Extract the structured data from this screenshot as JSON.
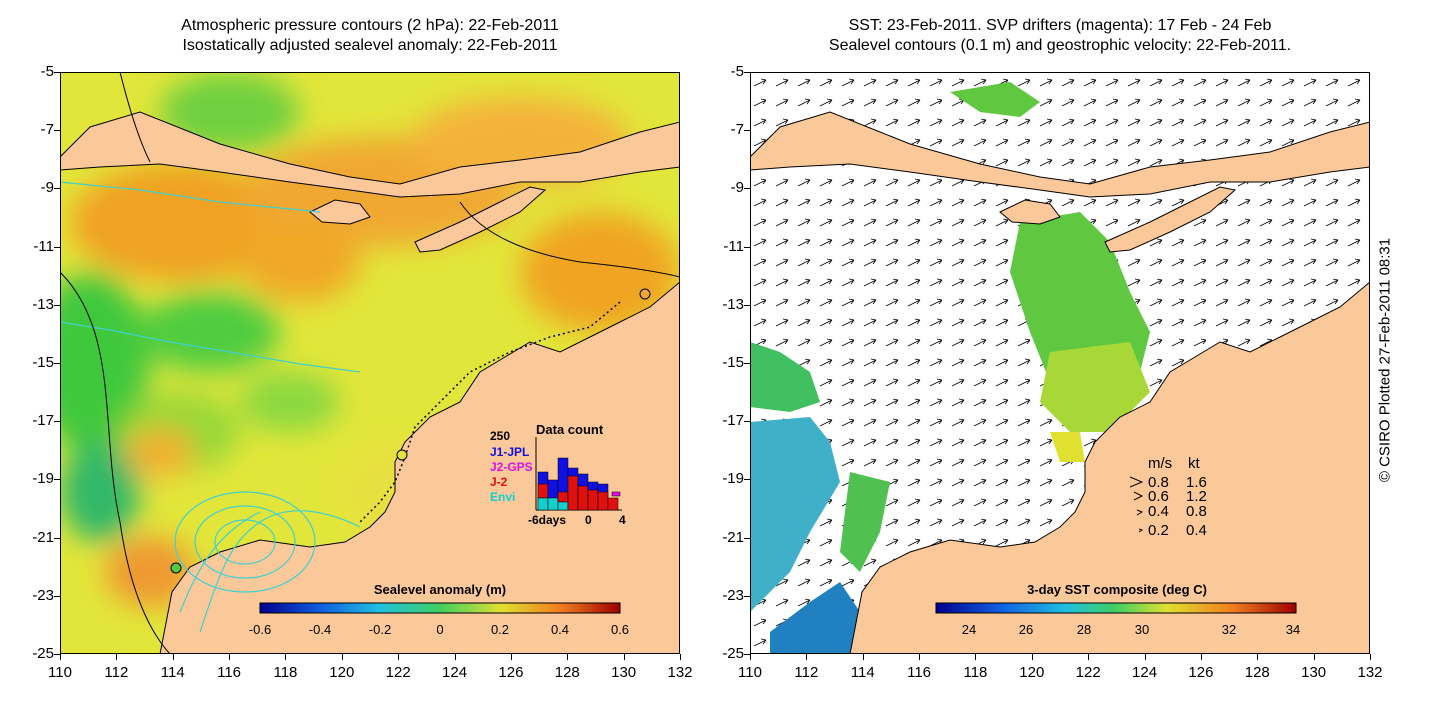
{
  "left_panel": {
    "title_line1": "Atmospheric pressure contours (2 hPa): 22-Feb-2011",
    "title_line2": "Isostatically adjusted sealevel anomaly: 22-Feb-2011",
    "colorbar": {
      "label": "Sealevel anomaly (m)",
      "ticks": [
        "-0.6",
        "-0.4",
        "-0.2",
        "0",
        "0.2",
        "0.4",
        "0.6"
      ]
    },
    "data_count": {
      "title": "Data count",
      "ymax_label": "250",
      "legend": [
        {
          "label": "J1-JPL",
          "color": "#1010e0"
        },
        {
          "label": "J2-GPS",
          "color": "#e010e0"
        },
        {
          "label": "J-2",
          "color": "#e01010"
        },
        {
          "label": "Envi",
          "color": "#10d0d0"
        }
      ],
      "x_ticks": [
        "-6days",
        "0",
        "4"
      ]
    }
  },
  "right_panel": {
    "title_line1": "SST: 23-Feb-2011. SVP drifters (magenta): 17 Feb - 24 Feb",
    "title_line2": "Sealevel contours (0.1 m) and geostrophic velocity: 22-Feb-2011.",
    "colorbar": {
      "label": "3-day SST composite (deg C)",
      "ticks": [
        "24",
        "26",
        "28",
        "30",
        "32",
        "34"
      ]
    },
    "velocity_legend": {
      "header_ms": "m/s",
      "header_kt": "kt",
      "rows": [
        {
          "ms": "0.8",
          "kt": "1.6"
        },
        {
          "ms": "0.6",
          "kt": "1.2"
        },
        {
          "ms": "0.4",
          "kt": "0.8"
        },
        {
          "ms": "0.2",
          "kt": "0.4"
        }
      ]
    }
  },
  "axes": {
    "y_labels": [
      "-5",
      "-7",
      "-9",
      "-11",
      "-13",
      "-15",
      "-17",
      "-19",
      "-21",
      "-23",
      "-25"
    ],
    "x_labels": [
      "110",
      "112",
      "114",
      "116",
      "118",
      "120",
      "122",
      "124",
      "126",
      "128",
      "130",
      "132"
    ]
  },
  "copyright": "© CSIRO Plotted 27-Feb-2011 08:31",
  "colors": {
    "land": "#fbc999",
    "sea_yellow": "#e7e83a",
    "sea_orange": "#f0a020",
    "sea_green": "#3cc83c",
    "contour_cyan": "#40d0d0"
  }
}
